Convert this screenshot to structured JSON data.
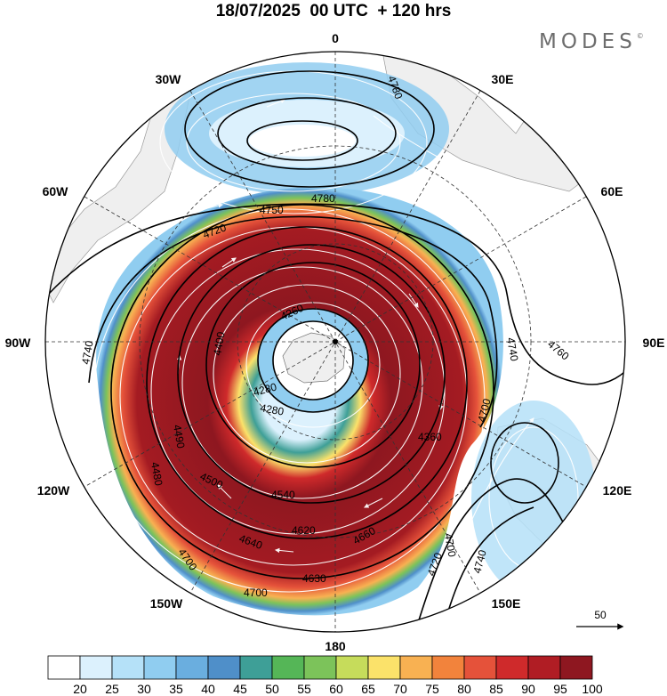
{
  "title": "18/07/2025  00 UTC  + 120 hrs",
  "brand": "MODES",
  "brand_mark": "©",
  "lon_labels": {
    "n": "0",
    "nne": "30E",
    "ene": "60E",
    "e": "90E",
    "ese": "120E",
    "sse": "150E",
    "s": "180",
    "ssw": "150W",
    "wsw": "120W",
    "w": "90W",
    "wnw": "60W",
    "nnw": "30W"
  },
  "contour_labels": [
    "4780",
    "4780",
    "4750",
    "4720",
    "4740",
    "4740",
    "4760",
    "4700",
    "4720",
    "4740",
    "4700",
    "4660",
    "4640",
    "4620",
    "4630",
    "4700",
    "4700",
    "4540",
    "4490",
    "4360",
    "4280",
    "4260",
    "4280",
    "4400",
    "4480",
    "4500"
  ],
  "vector_ref": "50",
  "colorbar": {
    "ticks": [
      "20",
      "25",
      "30",
      "35",
      "40",
      "45",
      "50",
      "55",
      "60",
      "65",
      "70",
      "75",
      "80",
      "85",
      "90",
      "95",
      "100"
    ],
    "colors": [
      "#ffffff",
      "#dcf1fd",
      "#b5e1f8",
      "#90cdf0",
      "#6aaedf",
      "#4f8fc9",
      "#3e9f97",
      "#55b657",
      "#7cc35a",
      "#c6dc5b",
      "#fbe26a",
      "#f8b152",
      "#f2833c",
      "#e5523a",
      "#cf2a2b",
      "#b01d24",
      "#8e1720"
    ]
  }
}
